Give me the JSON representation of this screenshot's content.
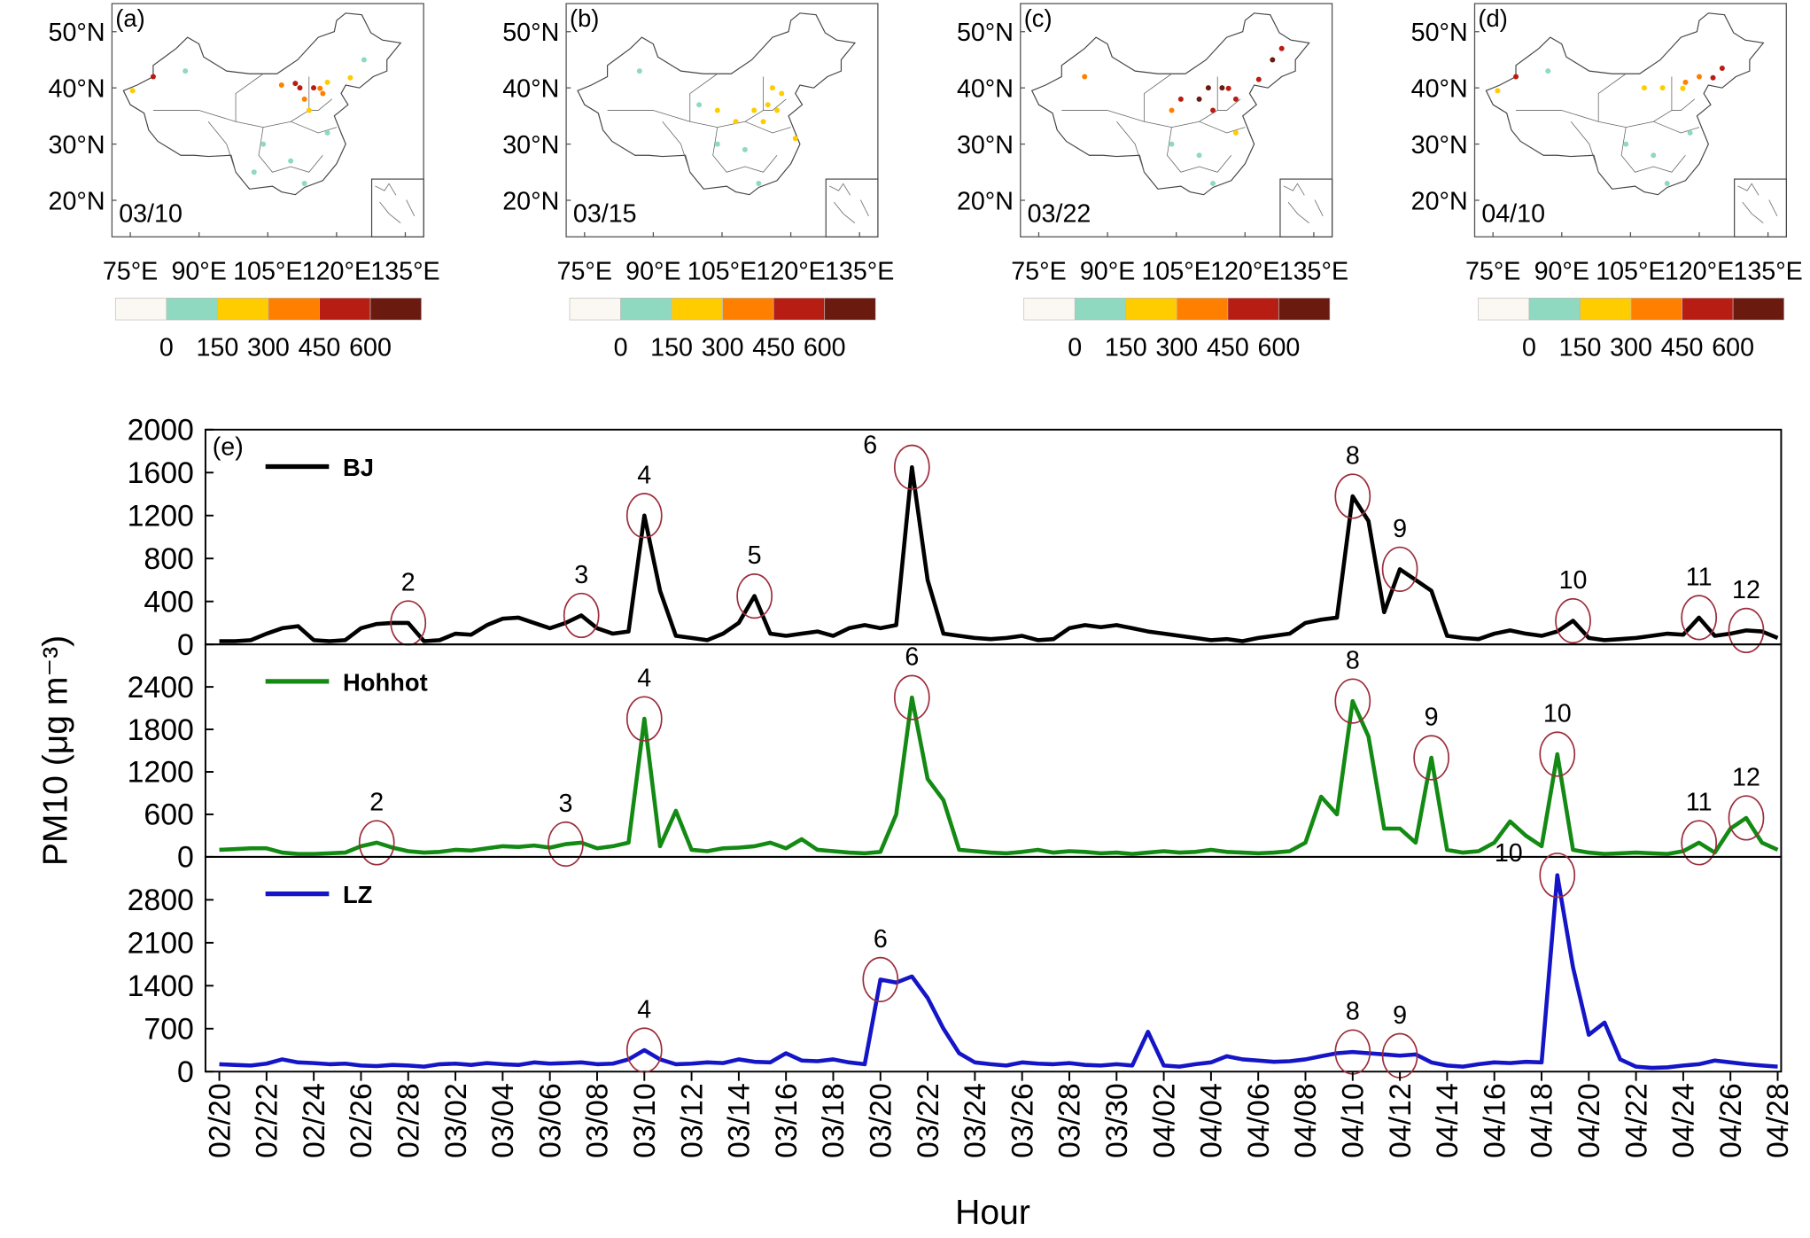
{
  "chart_data": [
    {
      "type": "map",
      "label": "(a)",
      "date": "03/10",
      "xlim": [
        71,
        139
      ],
      "ylim": [
        13.5,
        55
      ],
      "xticks": [
        {
          "value": 75,
          "label": "75°E"
        },
        {
          "value": 90,
          "label": "90°E"
        },
        {
          "value": 105,
          "label": "105°E"
        },
        {
          "value": 120,
          "label": "120°E"
        },
        {
          "value": 135,
          "label": "135°E"
        }
      ],
      "yticks": [
        {
          "value": 20,
          "label": "20°N"
        },
        {
          "value": 30,
          "label": "30°N"
        },
        {
          "value": 40,
          "label": "40°N"
        },
        {
          "value": 50,
          "label": "50°N"
        }
      ],
      "colorbar": {
        "colors": [
          "#fbf8f3",
          "#8fd9c0",
          "#ffcc00",
          "#ff7f00",
          "#b81d13",
          "#6b1a10"
        ],
        "ticks": [
          0,
          150,
          300,
          450,
          600
        ]
      },
      "points": [
        {
          "lon": 112,
          "lat": 40,
          "value": 500
        },
        {
          "lon": 115,
          "lat": 40,
          "value": 450
        },
        {
          "lon": 116.4,
          "lat": 39.9,
          "value": 380
        },
        {
          "lon": 111,
          "lat": 40.8,
          "value": 520
        },
        {
          "lon": 108,
          "lat": 40.5,
          "value": 400
        },
        {
          "lon": 113,
          "lat": 38,
          "value": 320
        },
        {
          "lon": 117,
          "lat": 39,
          "value": 300
        },
        {
          "lon": 114,
          "lat": 36,
          "value": 200
        },
        {
          "lon": 118,
          "lat": 41,
          "value": 200
        },
        {
          "lon": 123,
          "lat": 41.8,
          "value": 180
        },
        {
          "lon": 126,
          "lat": 45,
          "value": 100
        },
        {
          "lon": 80,
          "lat": 42,
          "value": 500
        },
        {
          "lon": 75.5,
          "lat": 39.5,
          "value": 200
        },
        {
          "lon": 104,
          "lat": 30,
          "value": 60
        },
        {
          "lon": 110,
          "lat": 27,
          "value": 50
        },
        {
          "lon": 113,
          "lat": 23,
          "value": 40
        },
        {
          "lon": 118,
          "lat": 32,
          "value": 120
        },
        {
          "lon": 102,
          "lat": 25,
          "value": 40
        },
        {
          "lon": 87,
          "lat": 43,
          "value": 80
        }
      ]
    },
    {
      "type": "map",
      "label": "(b)",
      "date": "03/15",
      "xlim": [
        71,
        139
      ],
      "ylim": [
        13.5,
        55
      ],
      "xticks": [
        {
          "value": 75,
          "label": "75°E"
        },
        {
          "value": 90,
          "label": "90°E"
        },
        {
          "value": 105,
          "label": "105°E"
        },
        {
          "value": 120,
          "label": "120°E"
        },
        {
          "value": 135,
          "label": "135°E"
        }
      ],
      "yticks": [
        {
          "value": 20,
          "label": "20°N"
        },
        {
          "value": 30,
          "label": "30°N"
        },
        {
          "value": 40,
          "label": "40°N"
        },
        {
          "value": 50,
          "label": "50°N"
        }
      ],
      "colorbar": {
        "colors": [
          "#fbf8f3",
          "#8fd9c0",
          "#ffcc00",
          "#ff7f00",
          "#b81d13",
          "#6b1a10"
        ],
        "ticks": [
          0,
          150,
          300,
          450,
          600
        ]
      },
      "points": [
        {
          "lon": 112,
          "lat": 36,
          "value": 200
        },
        {
          "lon": 115,
          "lat": 37,
          "value": 220
        },
        {
          "lon": 117,
          "lat": 36,
          "value": 250
        },
        {
          "lon": 114,
          "lat": 34,
          "value": 200
        },
        {
          "lon": 104,
          "lat": 36,
          "value": 180
        },
        {
          "lon": 108,
          "lat": 34,
          "value": 160
        },
        {
          "lon": 118,
          "lat": 39,
          "value": 200
        },
        {
          "lon": 116,
          "lat": 40,
          "value": 170
        },
        {
          "lon": 121,
          "lat": 31,
          "value": 180
        },
        {
          "lon": 110,
          "lat": 29,
          "value": 80
        },
        {
          "lon": 104,
          "lat": 30,
          "value": 60
        },
        {
          "lon": 113,
          "lat": 23,
          "value": 40
        },
        {
          "lon": 87,
          "lat": 43,
          "value": 80
        },
        {
          "lon": 100,
          "lat": 37,
          "value": 100
        }
      ]
    },
    {
      "type": "map",
      "label": "(c)",
      "date": "03/22",
      "xlim": [
        71,
        139
      ],
      "ylim": [
        13.5,
        55
      ],
      "xticks": [
        {
          "value": 75,
          "label": "75°E"
        },
        {
          "value": 90,
          "label": "90°E"
        },
        {
          "value": 105,
          "label": "105°E"
        },
        {
          "value": 120,
          "label": "120°E"
        },
        {
          "value": 135,
          "label": "135°E"
        }
      ],
      "yticks": [
        {
          "value": 20,
          "label": "20°N"
        },
        {
          "value": 30,
          "label": "30°N"
        },
        {
          "value": 40,
          "label": "40°N"
        },
        {
          "value": 50,
          "label": "50°N"
        }
      ],
      "colorbar": {
        "colors": [
          "#fbf8f3",
          "#8fd9c0",
          "#ffcc00",
          "#ff7f00",
          "#b81d13",
          "#6b1a10"
        ],
        "ticks": [
          0,
          150,
          300,
          450,
          600
        ]
      },
      "points": [
        {
          "lon": 112,
          "lat": 40,
          "value": 650
        },
        {
          "lon": 115,
          "lat": 40,
          "value": 620
        },
        {
          "lon": 116.4,
          "lat": 39.9,
          "value": 560
        },
        {
          "lon": 110,
          "lat": 38,
          "value": 600
        },
        {
          "lon": 106,
          "lat": 38,
          "value": 500
        },
        {
          "lon": 113,
          "lat": 36,
          "value": 520
        },
        {
          "lon": 118,
          "lat": 38,
          "value": 480
        },
        {
          "lon": 123,
          "lat": 41.5,
          "value": 550
        },
        {
          "lon": 126,
          "lat": 45,
          "value": 620
        },
        {
          "lon": 128,
          "lat": 47,
          "value": 500
        },
        {
          "lon": 104,
          "lat": 36,
          "value": 350
        },
        {
          "lon": 85,
          "lat": 42,
          "value": 300
        },
        {
          "lon": 118,
          "lat": 32,
          "value": 150
        },
        {
          "lon": 110,
          "lat": 28,
          "value": 60
        },
        {
          "lon": 104,
          "lat": 30,
          "value": 60
        },
        {
          "lon": 113,
          "lat": 23,
          "value": 40
        }
      ]
    },
    {
      "type": "map",
      "label": "(d)",
      "date": "04/10",
      "xlim": [
        71,
        139
      ],
      "ylim": [
        13.5,
        55
      ],
      "xticks": [
        {
          "value": 75,
          "label": "75°E"
        },
        {
          "value": 90,
          "label": "90°E"
        },
        {
          "value": 105,
          "label": "105°E"
        },
        {
          "value": 120,
          "label": "120°E"
        },
        {
          "value": 135,
          "label": "135°E"
        }
      ],
      "yticks": [
        {
          "value": 20,
          "label": "20°N"
        },
        {
          "value": 30,
          "label": "30°N"
        },
        {
          "value": 40,
          "label": "40°N"
        },
        {
          "value": 50,
          "label": "50°N"
        }
      ],
      "colorbar": {
        "colors": [
          "#fbf8f3",
          "#8fd9c0",
          "#ffcc00",
          "#ff7f00",
          "#b81d13",
          "#6b1a10"
        ],
        "ticks": [
          0,
          150,
          300,
          450,
          600
        ]
      },
      "points": [
        {
          "lon": 123,
          "lat": 41.8,
          "value": 450
        },
        {
          "lon": 125,
          "lat": 43.5,
          "value": 500
        },
        {
          "lon": 120,
          "lat": 42,
          "value": 400
        },
        {
          "lon": 117,
          "lat": 41,
          "value": 300
        },
        {
          "lon": 116.4,
          "lat": 39.9,
          "value": 200
        },
        {
          "lon": 112,
          "lat": 40,
          "value": 180
        },
        {
          "lon": 108,
          "lat": 40,
          "value": 200
        },
        {
          "lon": 80,
          "lat": 42,
          "value": 500
        },
        {
          "lon": 76,
          "lat": 39.5,
          "value": 200
        },
        {
          "lon": 118,
          "lat": 32,
          "value": 100
        },
        {
          "lon": 110,
          "lat": 28,
          "value": 60
        },
        {
          "lon": 104,
          "lat": 30,
          "value": 50
        },
        {
          "lon": 113,
          "lat": 23,
          "value": 40
        },
        {
          "lon": 87,
          "lat": 43,
          "value": 80
        }
      ]
    },
    {
      "type": "line",
      "label": "(e)",
      "ylabel": "PM10 (μg m⁻³)",
      "ylim": [
        0,
        2000
      ],
      "yticks": [
        0,
        400,
        800,
        1200,
        1600,
        2000
      ],
      "annotations": [
        "2",
        "3",
        "4",
        "5",
        "6",
        "8",
        "9",
        "10",
        "11",
        "12"
      ],
      "series": [
        {
          "name": "BJ",
          "color": "#000000",
          "values": [
            30,
            30,
            40,
            100,
            150,
            170,
            40,
            30,
            40,
            150,
            190,
            200,
            200,
            30,
            40,
            100,
            90,
            180,
            240,
            250,
            200,
            150,
            200,
            270,
            150,
            100,
            120,
            1200,
            500,
            80,
            60,
            40,
            100,
            200,
            450,
            100,
            80,
            100,
            120,
            80,
            150,
            180,
            150,
            180,
            1650,
            600,
            100,
            80,
            60,
            50,
            60,
            80,
            40,
            50,
            150,
            180,
            160,
            180,
            150,
            120,
            100,
            80,
            60,
            40,
            50,
            30,
            60,
            80,
            100,
            200,
            230,
            250,
            1380,
            1150,
            300,
            700,
            600,
            500,
            80,
            60,
            50,
            100,
            130,
            100,
            80,
            120,
            220,
            60,
            40,
            50,
            60,
            80,
            100,
            90,
            250,
            80,
            100,
            130,
            120,
            60
          ]
        }
      ]
    },
    {
      "type": "line",
      "ylim": [
        0,
        3000
      ],
      "yticks": [
        0,
        600,
        1200,
        1800,
        2400
      ],
      "annotations": [
        "2",
        "3",
        "4",
        "6",
        "8",
        "9",
        "10",
        "11",
        "12"
      ],
      "series": [
        {
          "name": "Hohhot",
          "color": "#138a13",
          "values": [
            100,
            110,
            120,
            120,
            60,
            40,
            40,
            50,
            60,
            150,
            200,
            130,
            80,
            60,
            70,
            100,
            90,
            120,
            150,
            140,
            160,
            130,
            180,
            200,
            120,
            150,
            200,
            1950,
            150,
            650,
            100,
            80,
            120,
            130,
            150,
            200,
            120,
            250,
            100,
            80,
            60,
            50,
            70,
            600,
            2250,
            1100,
            800,
            100,
            80,
            60,
            50,
            70,
            100,
            60,
            80,
            70,
            50,
            60,
            40,
            60,
            80,
            60,
            70,
            100,
            70,
            60,
            50,
            60,
            80,
            200,
            850,
            600,
            2200,
            1700,
            400,
            400,
            200,
            1400,
            100,
            60,
            80,
            200,
            500,
            300,
            150,
            1450,
            100,
            60,
            40,
            50,
            60,
            50,
            40,
            80,
            200,
            60,
            400,
            550,
            200,
            100
          ]
        }
      ]
    },
    {
      "type": "line",
      "xlabel": "Hour",
      "ylim": [
        0,
        3500
      ],
      "yticks": [
        0,
        700,
        1400,
        2100,
        2800
      ],
      "annotations": [
        "4",
        "6",
        "8",
        "9",
        "10"
      ],
      "categories": [
        "02/20",
        null,
        null,
        "02/22",
        null,
        null,
        "02/24",
        null,
        null,
        "02/26",
        null,
        null,
        "02/28",
        null,
        null,
        "03/02",
        null,
        null,
        "03/04",
        null,
        null,
        "03/06",
        null,
        null,
        "03/08",
        null,
        null,
        "03/10",
        null,
        null,
        "03/12",
        null,
        null,
        "03/14",
        null,
        null,
        "03/16",
        null,
        null,
        "03/18",
        null,
        null,
        "03/20",
        null,
        null,
        "03/22",
        null,
        null,
        "03/24",
        null,
        null,
        "03/26",
        null,
        null,
        "03/28",
        null,
        null,
        "03/30",
        null,
        null,
        "04/02",
        null,
        null,
        "04/04",
        null,
        null,
        "04/06",
        null,
        null,
        "04/08",
        null,
        null,
        "04/10",
        null,
        null,
        "04/12",
        null,
        null,
        "04/14",
        null,
        null,
        "04/16",
        null,
        null,
        "04/18",
        null,
        null,
        "04/20",
        null,
        null,
        "04/22",
        null,
        null,
        "04/24",
        null,
        null,
        "04/26",
        null,
        null,
        "04/28"
      ],
      "series": [
        {
          "name": "LZ",
          "color": "#1515c8",
          "values": [
            120,
            110,
            100,
            130,
            200,
            150,
            140,
            120,
            130,
            100,
            90,
            110,
            100,
            80,
            120,
            130,
            110,
            140,
            120,
            110,
            150,
            130,
            140,
            150,
            120,
            130,
            200,
            350,
            200,
            120,
            130,
            150,
            140,
            200,
            160,
            150,
            300,
            180,
            170,
            200,
            150,
            120,
            1500,
            1450,
            1550,
            1200,
            700,
            300,
            150,
            120,
            100,
            150,
            130,
            120,
            140,
            110,
            100,
            120,
            100,
            650,
            100,
            80,
            120,
            150,
            250,
            200,
            180,
            160,
            170,
            200,
            250,
            300,
            320,
            300,
            280,
            260,
            280,
            150,
            100,
            80,
            120,
            150,
            140,
            160,
            150,
            3200,
            1700,
            600,
            800,
            200,
            80,
            60,
            70,
            100,
            120,
            180,
            150,
            120,
            100,
            80
          ]
        }
      ]
    }
  ]
}
